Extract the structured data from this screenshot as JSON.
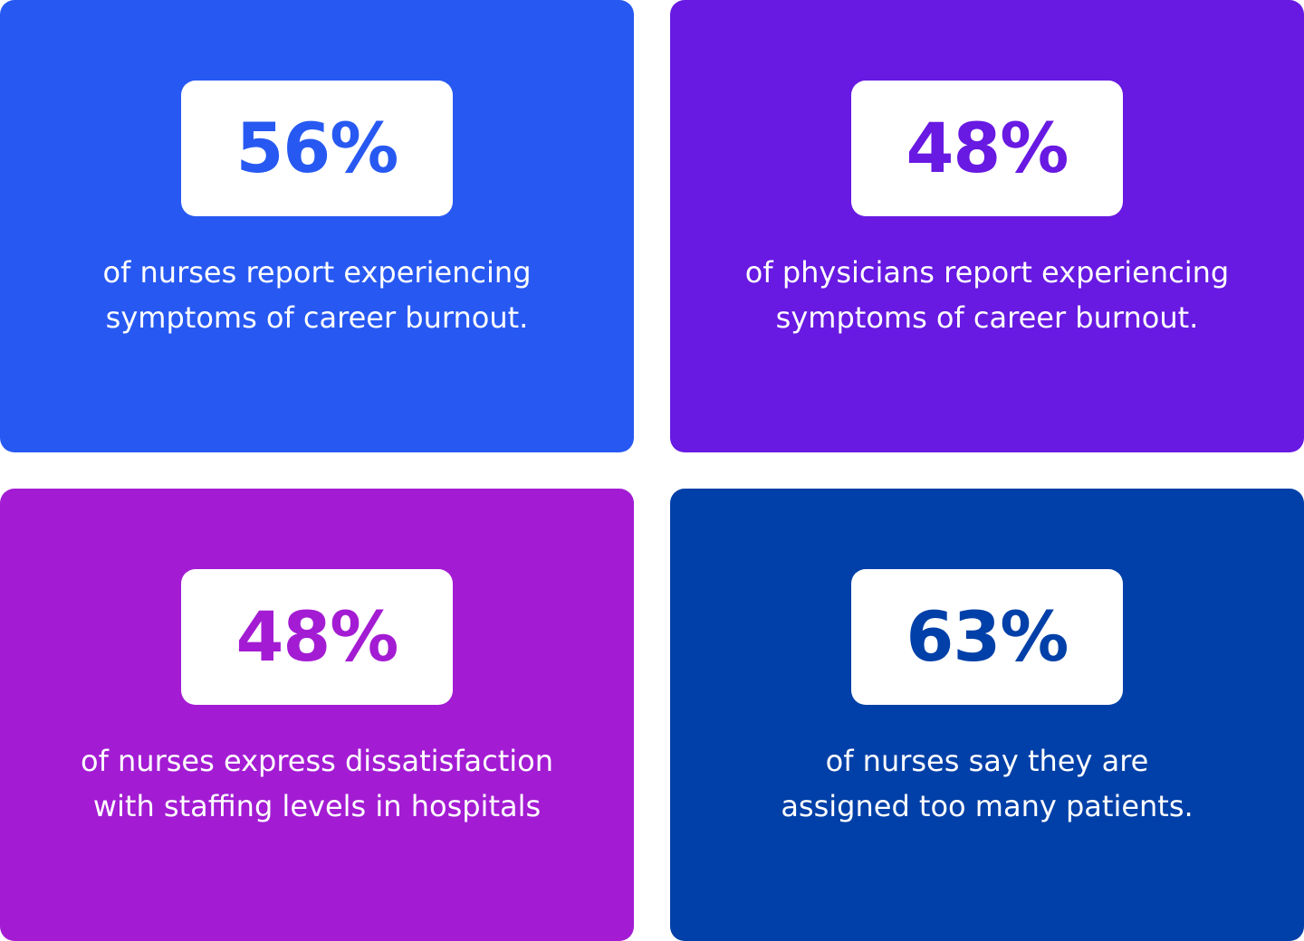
{
  "cards": [
    {
      "value": "56%",
      "line1": "of nurses report experiencing",
      "line2": "symptoms of career burnout.",
      "background": "#2759F2",
      "accent": "#2759F2"
    },
    {
      "value": "48%",
      "line1": "of physicians report experiencing",
      "line2": "symptoms of career burnout.",
      "background": "#6819E2",
      "accent": "#6819E2"
    },
    {
      "value": "48%",
      "line1": "of nurses express dissatisfaction",
      "line2": "with staffing levels in hospitals",
      "background": "#A31CD3",
      "accent": "#A31CD3"
    },
    {
      "value": "63%",
      "line1": "of nurses say they are",
      "line2": "assigned too many patients.",
      "background": "#0140A8",
      "accent": "#0140A8"
    }
  ]
}
